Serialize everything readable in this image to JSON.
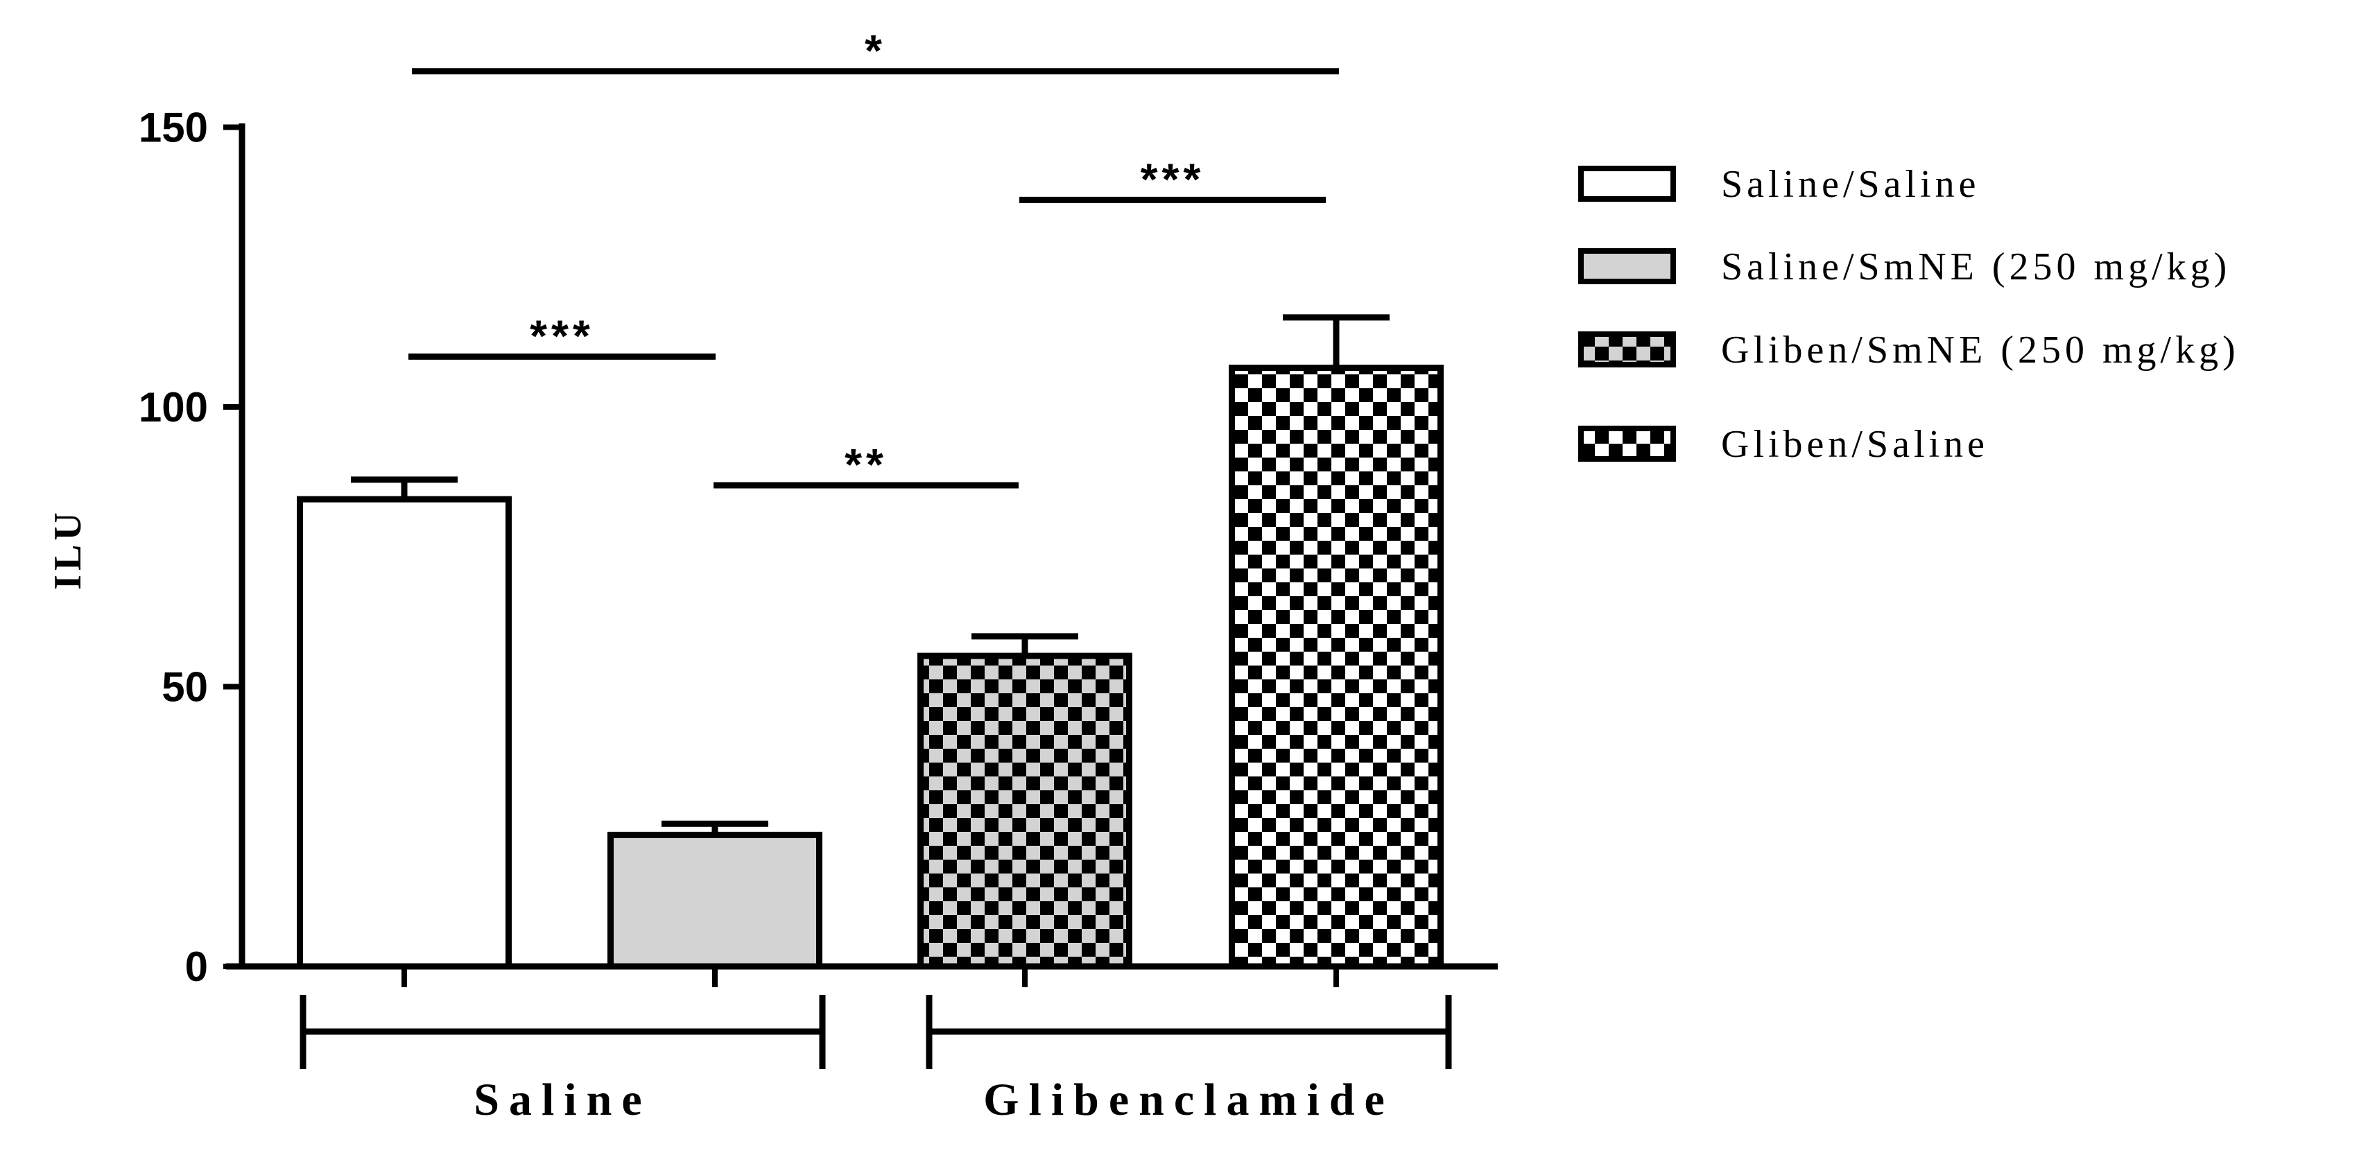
{
  "chart_data": {
    "type": "bar",
    "xlabel": "",
    "ylabel": "ILU",
    "ylim": [
      0,
      150
    ],
    "yticks": [
      "0",
      "50",
      "100",
      "150"
    ],
    "grid": false,
    "legend_position": "right",
    "groups": [
      {
        "label": "Saline",
        "members": [
          "Saline/Saline",
          "Saline/SmNE (250 mg/kg)"
        ]
      },
      {
        "label": "Glibenclamide",
        "members": [
          "Gliben/SmNE (250 mg/kg)",
          "Gliben/Saline"
        ]
      }
    ],
    "series": [
      {
        "name": "Saline/Saline",
        "value": 83.5,
        "error": 3.5,
        "fill": "white"
      },
      {
        "name": "Saline/SmNE (250 mg/kg)",
        "value": 23.5,
        "error": 2.0,
        "fill": "gray"
      },
      {
        "name": "Gliben/SmNE (250 mg/kg)",
        "value": 55.5,
        "error": 3.5,
        "fill": "check-gray"
      },
      {
        "name": "Gliben/Saline",
        "value": 107.0,
        "error": 9.0,
        "fill": "check-white"
      }
    ],
    "significance": [
      {
        "from": 0,
        "to": 3,
        "label": "*",
        "y": 160
      },
      {
        "from": 2,
        "to": 3,
        "label": "***",
        "y": 137
      },
      {
        "from": 0,
        "to": 1,
        "label": "***",
        "y": 109
      },
      {
        "from": 1,
        "to": 2,
        "label": "**",
        "y": 86
      }
    ],
    "colors": {
      "gray": "#d3d3d3",
      "black": "#000000",
      "white": "#ffffff"
    }
  }
}
